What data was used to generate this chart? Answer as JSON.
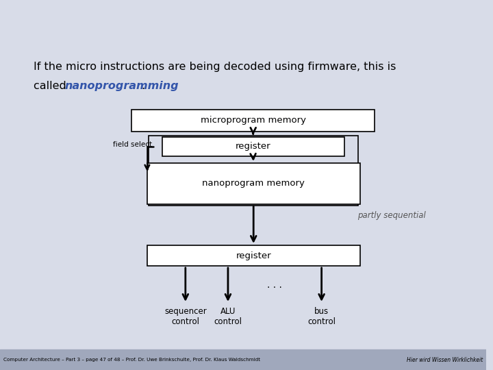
{
  "bg_color": "#d8dce8",
  "bg_color_bottom": "#b0b8cc",
  "title_line1": "If the micro instructions are being decoded using firmware, this is",
  "title_line2_plain": "called ",
  "title_line2_italic": "nanoprogramming",
  "title_line2_end": ".",
  "box_microprogram": "microprogram memory",
  "box_register1": "register",
  "box_nanoprogram": "nanoprogram memory",
  "box_register2": "register",
  "label_field_select": "field select",
  "label_partly_sequential": "partly sequential",
  "label_dots": ". . .",
  "label_sequencer": "sequencer\ncontrol",
  "label_alu": "ALU\ncontrol",
  "label_bus": "bus\ncontrol",
  "footer_left": "Computer Architecture – Part 3 – page 47 of 48 – Prof. Dr. Uwe Brinkschulte, Prof. Dr. Klaus Waldschmidt",
  "footer_right": "Hier wird Wissen Wirklichkeit",
  "box_color": "#ffffff",
  "box_edge_color": "#000000",
  "arrow_color": "#000000",
  "nano_italic_color": "#3355aa",
  "partly_seq_color": "#555555",
  "footer_bg": "#a0a8bc"
}
